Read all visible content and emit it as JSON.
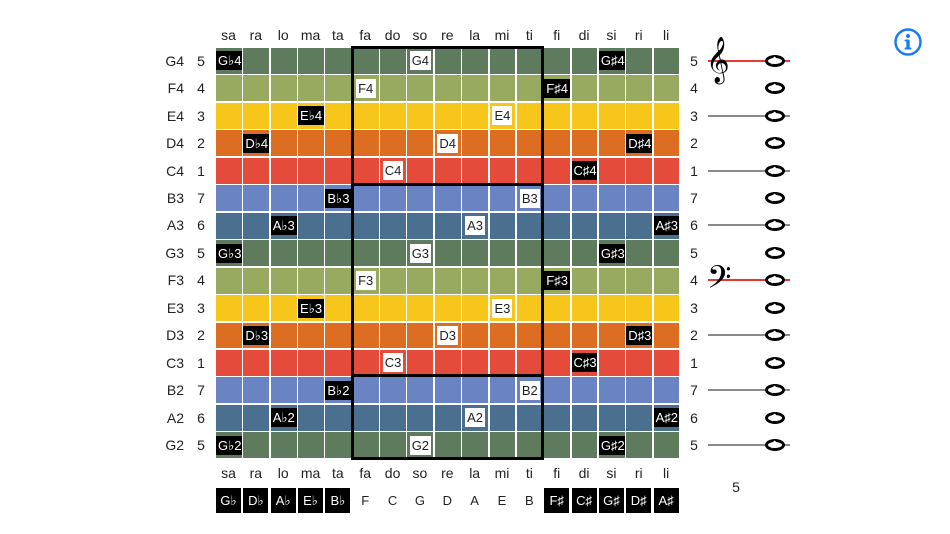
{
  "syllables": [
    "sa",
    "ra",
    "lo",
    "ma",
    "ta",
    "fa",
    "do",
    "so",
    "re",
    "la",
    "mi",
    "ti",
    "fi",
    "di",
    "si",
    "ri",
    "li"
  ],
  "rows": [
    {
      "name": "G4",
      "degree": "5",
      "color": "#5e7b5e"
    },
    {
      "name": "F4",
      "degree": "4",
      "color": "#97aa5f"
    },
    {
      "name": "E4",
      "degree": "3",
      "color": "#f6c71a"
    },
    {
      "name": "D4",
      "degree": "2",
      "color": "#dc6d21"
    },
    {
      "name": "C4",
      "degree": "1",
      "color": "#e44b3a"
    },
    {
      "name": "B3",
      "degree": "7",
      "color": "#6a83c3"
    },
    {
      "name": "A3",
      "degree": "6",
      "color": "#4b6f8e"
    },
    {
      "name": "G3",
      "degree": "5",
      "color": "#5e7b5e"
    },
    {
      "name": "F3",
      "degree": "4",
      "color": "#97aa5f"
    },
    {
      "name": "E3",
      "degree": "3",
      "color": "#f6c71a"
    },
    {
      "name": "D3",
      "degree": "2",
      "color": "#dc6d21"
    },
    {
      "name": "C3",
      "degree": "1",
      "color": "#e44b3a"
    },
    {
      "name": "B2",
      "degree": "7",
      "color": "#6a83c3"
    },
    {
      "name": "A2",
      "degree": "6",
      "color": "#4b6f8e"
    },
    {
      "name": "G2",
      "degree": "5",
      "color": "#5e7b5e"
    }
  ],
  "cell_labels": [
    {
      "row": 0,
      "col": 0,
      "text": "G♭4",
      "style": "black"
    },
    {
      "row": 0,
      "col": 7,
      "text": "G4",
      "style": "white"
    },
    {
      "row": 0,
      "col": 14,
      "text": "G♯4",
      "style": "black"
    },
    {
      "row": 1,
      "col": 5,
      "text": "F4",
      "style": "white"
    },
    {
      "row": 1,
      "col": 12,
      "text": "F♯4",
      "style": "black"
    },
    {
      "row": 2,
      "col": 3,
      "text": "E♭4",
      "style": "black"
    },
    {
      "row": 2,
      "col": 10,
      "text": "E4",
      "style": "white"
    },
    {
      "row": 3,
      "col": 1,
      "text": "D♭4",
      "style": "black"
    },
    {
      "row": 3,
      "col": 8,
      "text": "D4",
      "style": "white"
    },
    {
      "row": 3,
      "col": 15,
      "text": "D♯4",
      "style": "black"
    },
    {
      "row": 4,
      "col": 6,
      "text": "C4",
      "style": "white"
    },
    {
      "row": 4,
      "col": 13,
      "text": "C♯4",
      "style": "black"
    },
    {
      "row": 5,
      "col": 4,
      "text": "B♭3",
      "style": "black"
    },
    {
      "row": 5,
      "col": 11,
      "text": "B3",
      "style": "white"
    },
    {
      "row": 6,
      "col": 2,
      "text": "A♭3",
      "style": "black"
    },
    {
      "row": 6,
      "col": 9,
      "text": "A3",
      "style": "white"
    },
    {
      "row": 6,
      "col": 16,
      "text": "A♯3",
      "style": "black"
    },
    {
      "row": 7,
      "col": 0,
      "text": "G♭3",
      "style": "black"
    },
    {
      "row": 7,
      "col": 7,
      "text": "G3",
      "style": "white"
    },
    {
      "row": 7,
      "col": 14,
      "text": "G♯3",
      "style": "black"
    },
    {
      "row": 8,
      "col": 5,
      "text": "F3",
      "style": "white"
    },
    {
      "row": 8,
      "col": 12,
      "text": "F♯3",
      "style": "black"
    },
    {
      "row": 9,
      "col": 3,
      "text": "E♭3",
      "style": "black"
    },
    {
      "row": 9,
      "col": 10,
      "text": "E3",
      "style": "white"
    },
    {
      "row": 10,
      "col": 1,
      "text": "D♭3",
      "style": "black"
    },
    {
      "row": 10,
      "col": 8,
      "text": "D3",
      "style": "white"
    },
    {
      "row": 10,
      "col": 15,
      "text": "D♯3",
      "style": "black"
    },
    {
      "row": 11,
      "col": 6,
      "text": "C3",
      "style": "white"
    },
    {
      "row": 11,
      "col": 13,
      "text": "C♯3",
      "style": "black"
    },
    {
      "row": 12,
      "col": 4,
      "text": "B♭2",
      "style": "black"
    },
    {
      "row": 12,
      "col": 11,
      "text": "B2",
      "style": "white"
    },
    {
      "row": 13,
      "col": 2,
      "text": "A♭2",
      "style": "black"
    },
    {
      "row": 13,
      "col": 9,
      "text": "A2",
      "style": "white"
    },
    {
      "row": 13,
      "col": 16,
      "text": "A♯2",
      "style": "black"
    },
    {
      "row": 14,
      "col": 0,
      "text": "G♭2",
      "style": "black"
    },
    {
      "row": 14,
      "col": 7,
      "text": "G2",
      "style": "white"
    },
    {
      "row": 14,
      "col": 14,
      "text": "G♯2",
      "style": "black"
    }
  ],
  "key_row": [
    {
      "text": "G♭",
      "style": "black"
    },
    {
      "text": "D♭",
      "style": "black"
    },
    {
      "text": "A♭",
      "style": "black"
    },
    {
      "text": "E♭",
      "style": "black"
    },
    {
      "text": "B♭",
      "style": "black"
    },
    {
      "text": "F",
      "style": "white"
    },
    {
      "text": "C",
      "style": "white"
    },
    {
      "text": "G",
      "style": "white"
    },
    {
      "text": "D",
      "style": "white"
    },
    {
      "text": "A",
      "style": "white"
    },
    {
      "text": "E",
      "style": "white"
    },
    {
      "text": "B",
      "style": "white"
    },
    {
      "text": "F♯",
      "style": "black"
    },
    {
      "text": "C♯",
      "style": "black"
    },
    {
      "text": "G♯",
      "style": "black"
    },
    {
      "text": "D♯",
      "style": "black"
    },
    {
      "text": "A♯",
      "style": "black"
    }
  ],
  "staff_lines": [
    {
      "row": 0,
      "color": "#e53935"
    },
    {
      "row": 2,
      "color": "#8a8a8a"
    },
    {
      "row": 4,
      "color": "#8a8a8a"
    },
    {
      "row": 6,
      "color": "#8a8a8a"
    },
    {
      "row": 8,
      "color": "#e53935"
    },
    {
      "row": 10,
      "color": "#8a8a8a"
    },
    {
      "row": 12,
      "color": "#8a8a8a"
    },
    {
      "row": 14,
      "color": "#8a8a8a"
    }
  ],
  "clefs": {
    "treble": "𝄞",
    "bass": "𝄢"
  },
  "bottom_value": "5",
  "info_icon": "info-icon",
  "accent_color": "#1a7cf5",
  "frame_color": "#000000"
}
